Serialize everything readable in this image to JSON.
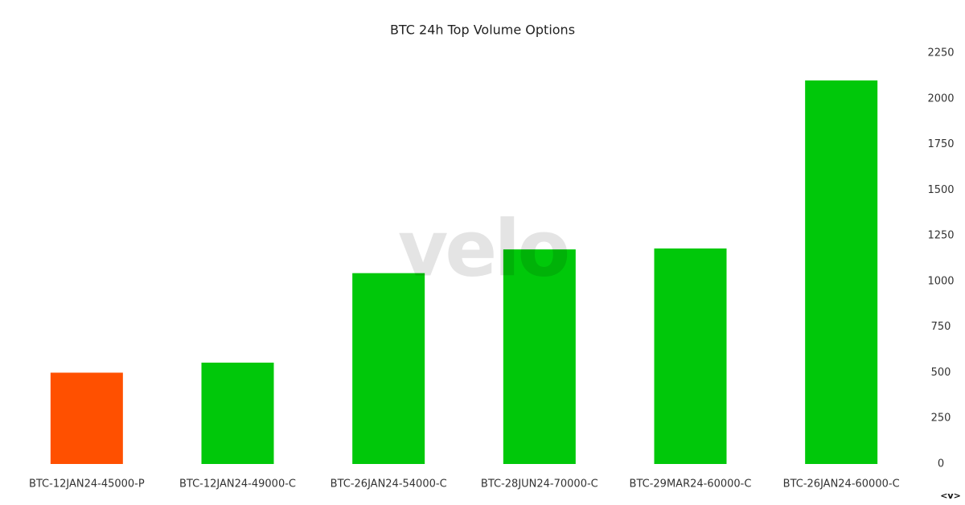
{
  "chart_data": {
    "type": "bar",
    "title": "BTC 24h Top Volume Options",
    "categories": [
      "BTC-12JAN24-45000-P",
      "BTC-12JAN24-49000-C",
      "BTC-26JAN24-54000-C",
      "BTC-28JUN24-70000-C",
      "BTC-29MAR24-60000-C",
      "BTC-26JAN24-60000-C"
    ],
    "values": [
      500,
      555,
      1045,
      1175,
      1180,
      2100
    ],
    "colors": [
      "#ff5000",
      "#00c80a",
      "#00c80a",
      "#00c80a",
      "#00c80a",
      "#00c80a"
    ],
    "ylim": [
      0,
      2250
    ],
    "yticks": [
      0,
      250,
      500,
      750,
      1000,
      1250,
      1500,
      1750,
      2000,
      2250
    ],
    "y_axis_side": "right",
    "grid": false,
    "watermark": "velo",
    "logo": "<v>"
  }
}
